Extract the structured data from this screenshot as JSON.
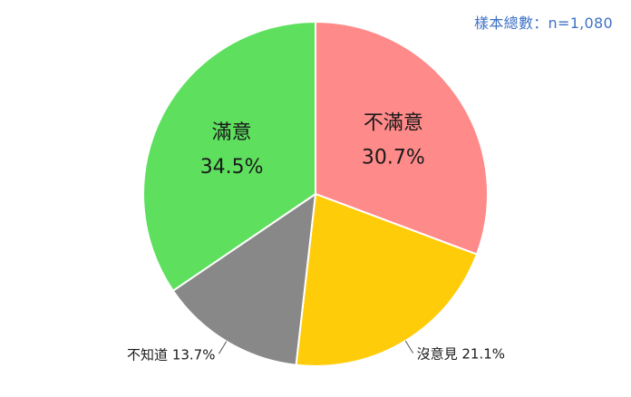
{
  "sample_size_text": "樣本總數：n=1,080",
  "chart_data": {
    "type": "pie",
    "title": "",
    "start_angle_deg": 0,
    "direction": "clockwise",
    "legend": "none",
    "slices": [
      {
        "label": "不滿意",
        "value": 30.7,
        "value_text": "30.7%",
        "color": "#ff8a8a",
        "label_placement": "inside-two-line"
      },
      {
        "label": "沒意見",
        "value": 21.1,
        "value_text": "21.1%",
        "color": "#ffcc0a",
        "label_placement": "outside-one-line"
      },
      {
        "label": "不知道",
        "value": 13.7,
        "value_text": "13.7%",
        "color": "#888888",
        "label_placement": "outside-one-line"
      },
      {
        "label": "滿意",
        "value": 34.5,
        "value_text": "34.5%",
        "color": "#5ee05e",
        "label_placement": "inside-two-line"
      }
    ]
  }
}
